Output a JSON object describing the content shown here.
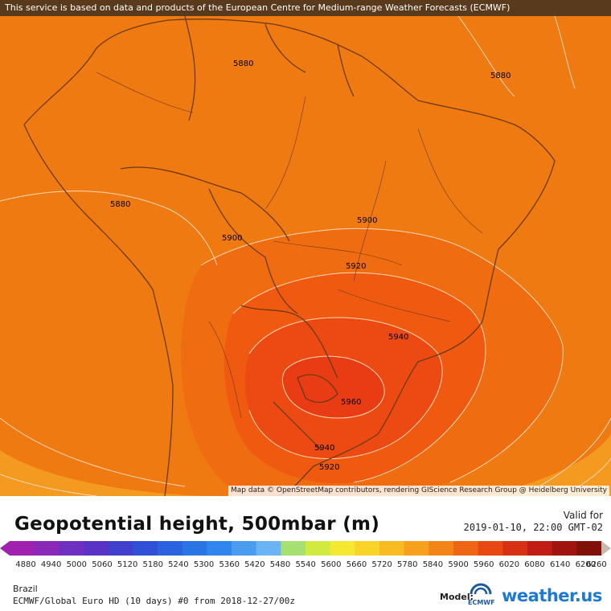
{
  "header": {
    "notice": "This service is based on data and products of the European Centre for Medium-range Weather Forecasts (ECMWF)"
  },
  "map": {
    "attribution": "Map data © OpenStreetMap contributors, rendering GIScience Research Group @ Heidelberg University",
    "contour_labels": [
      "5880",
      "5880",
      "5880",
      "5900",
      "5900",
      "5920",
      "5940",
      "5960",
      "5940",
      "5920"
    ],
    "colors": {
      "base": "#f07a12",
      "band_5900": "#f06c10",
      "band_5920": "#ef5a10",
      "band_5940": "#ec4a12",
      "band_5960": "#e93c14",
      "outer_light": "#f49a20",
      "contour_line": "#ffd9b8",
      "border": "#6b3a14"
    }
  },
  "legend": {
    "title": "Geopotential height, 500mbar (m)",
    "valid_label": "Valid for",
    "valid_time": "2019-01-10, 22:00 GMT-02",
    "scale_labels": [
      "4880",
      "4940",
      "5000",
      "5060",
      "5120",
      "5180",
      "5240",
      "5300",
      "5360",
      "5420",
      "5480",
      "5540",
      "5600",
      "5660",
      "5720",
      "5780",
      "5840",
      "5900",
      "5960",
      "6020",
      "6080",
      "6140",
      "6200",
      "6260"
    ],
    "scale_colors": [
      "#a020b0",
      "#8a28b8",
      "#6e30c0",
      "#5a32c4",
      "#4040cc",
      "#3050d8",
      "#2a62e0",
      "#2a74e6",
      "#3086ec",
      "#4a9cf0",
      "#6ab4f4",
      "#a6e070",
      "#d2ea40",
      "#f4e830",
      "#f8d428",
      "#f8bc22",
      "#f6a01e",
      "#f28418",
      "#ee6614",
      "#e84812",
      "#d83014",
      "#c01e14",
      "#a01410",
      "#801008"
    ],
    "arrow_left_color": "#a020b0",
    "arrow_right_color": "#c8b8b0"
  },
  "footer": {
    "region": "Brazil",
    "model_line": "ECMWF/Global Euro HD (10 days) #0 from 2018-12-27/00z",
    "model_label": "Model:",
    "ecmwf_text": "ECMWF",
    "brand": "weather.us"
  }
}
